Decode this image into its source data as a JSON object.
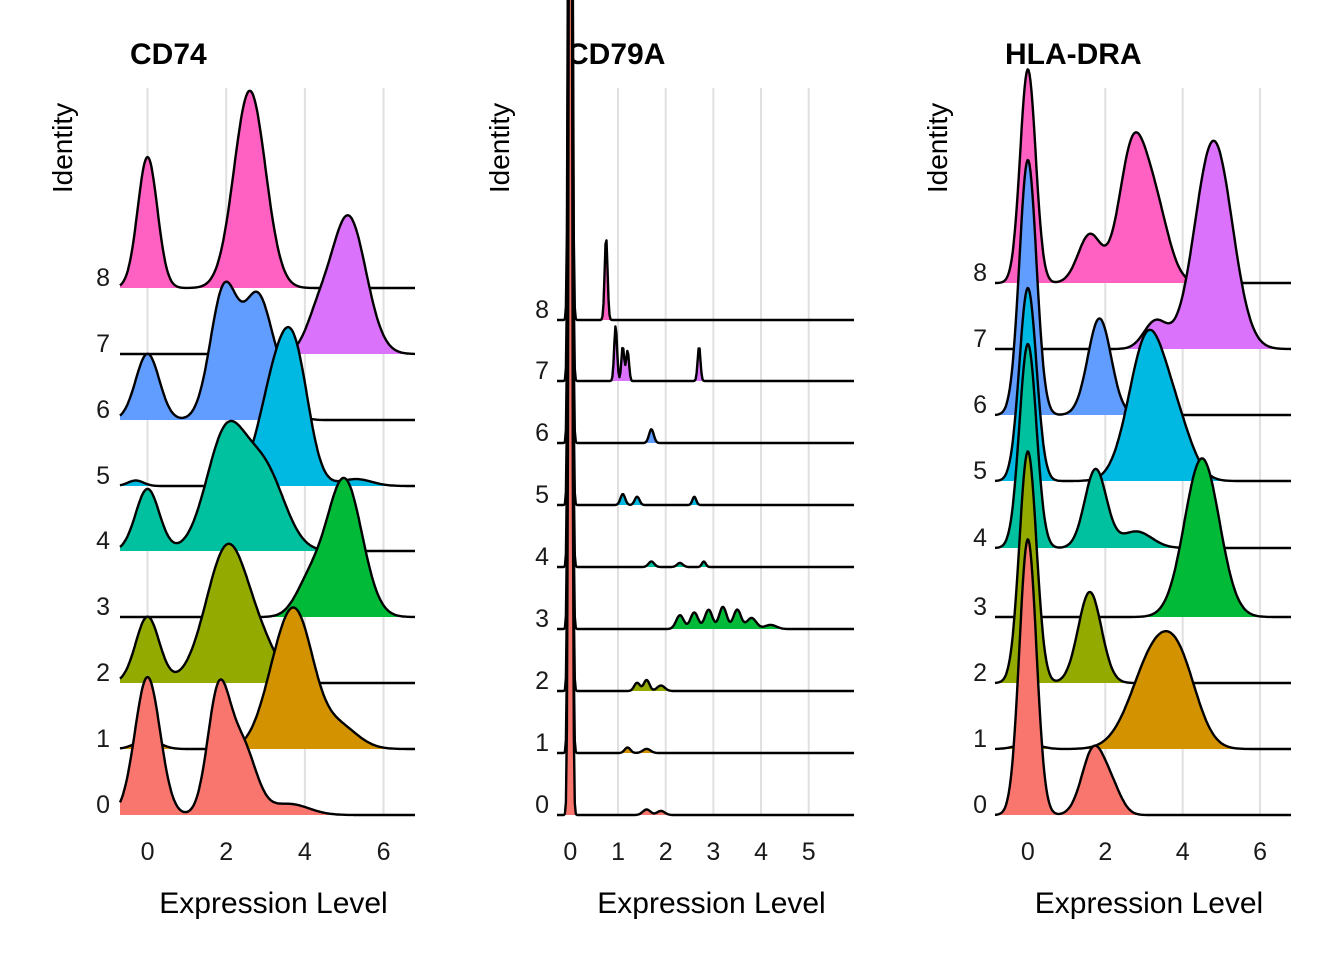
{
  "chart_data": [
    {
      "type": "ridgeline",
      "title": "CD74",
      "xlabel": "Expression Level",
      "ylabel": "Identity",
      "xlim": [
        -0.7,
        6.8
      ],
      "xticks": [
        0,
        2,
        4,
        6
      ],
      "categories": [
        "0",
        "1",
        "2",
        "3",
        "4",
        "5",
        "6",
        "7",
        "8"
      ],
      "colors": [
        "#F8766D",
        "#D39200",
        "#93AA00",
        "#00BA38",
        "#00C19F",
        "#00B9E3",
        "#619CFF",
        "#DB72FB",
        "#FF61C3"
      ],
      "grid": "vertical",
      "series": [
        {
          "name": "0",
          "peaks": [
            [
              0.0,
              0.32,
              1.0
            ],
            [
              1.8,
              0.28,
              0.85
            ],
            [
              2.4,
              0.35,
              0.5
            ],
            [
              3.6,
              0.5,
              0.08
            ]
          ]
        },
        {
          "name": "1",
          "peaks": [
            [
              0.0,
              0.3,
              0.07
            ],
            [
              3.4,
              0.45,
              0.6
            ],
            [
              3.9,
              0.4,
              0.6
            ],
            [
              4.8,
              0.5,
              0.18
            ]
          ]
        },
        {
          "name": "2",
          "peaks": [
            [
              0.0,
              0.3,
              0.48
            ],
            [
              2.05,
              0.55,
              1.0
            ],
            [
              3.0,
              0.4,
              0.15
            ]
          ]
        },
        {
          "name": "3",
          "peaks": [
            [
              4.1,
              0.35,
              0.22
            ],
            [
              5.0,
              0.45,
              1.0
            ]
          ]
        },
        {
          "name": "4",
          "peaks": [
            [
              0.0,
              0.3,
              0.45
            ],
            [
              2.0,
              0.5,
              0.85
            ],
            [
              3.0,
              0.5,
              0.55
            ]
          ]
        },
        {
          "name": "5",
          "peaks": [
            [
              -0.3,
              0.2,
              0.04
            ],
            [
              3.3,
              0.45,
              0.8
            ],
            [
              3.8,
              0.35,
              0.6
            ],
            [
              5.3,
              0.4,
              0.05
            ]
          ]
        },
        {
          "name": "6",
          "peaks": [
            [
              0.0,
              0.3,
              0.48
            ],
            [
              1.95,
              0.35,
              0.95
            ],
            [
              2.8,
              0.35,
              0.85
            ],
            [
              3.4,
              0.3,
              0.2
            ]
          ]
        },
        {
          "name": "7",
          "peaks": [
            [
              4.3,
              0.3,
              0.2
            ],
            [
              5.1,
              0.45,
              1.0
            ]
          ]
        },
        {
          "name": "8",
          "peaks": [
            [
              0.0,
              0.25,
              0.95
            ],
            [
              2.6,
              0.4,
              1.43
            ]
          ]
        }
      ]
    },
    {
      "type": "ridgeline",
      "title": "CD79A",
      "xlabel": "Expression Level",
      "ylabel": "Identity",
      "xlim": [
        -0.28,
        5.95
      ],
      "xticks": [
        0,
        1,
        2,
        3,
        4,
        5
      ],
      "categories": [
        "0",
        "1",
        "2",
        "3",
        "4",
        "5",
        "6",
        "7",
        "8"
      ],
      "colors": [
        "#F8766D",
        "#D39200",
        "#93AA00",
        "#00BA38",
        "#00C19F",
        "#00B9E3",
        "#619CFF",
        "#DB72FB",
        "#FF61C3"
      ],
      "grid": "vertical",
      "series": [
        {
          "name": "0",
          "peaks": [
            [
              0.0,
              0.03,
              11.5
            ],
            [
              1.6,
              0.08,
              0.04
            ],
            [
              1.9,
              0.08,
              0.03
            ]
          ]
        },
        {
          "name": "1",
          "peaks": [
            [
              0.0,
              0.03,
              11.5
            ],
            [
              1.2,
              0.06,
              0.04
            ],
            [
              1.6,
              0.08,
              0.03
            ]
          ]
        },
        {
          "name": "2",
          "peaks": [
            [
              0.0,
              0.03,
              11.5
            ],
            [
              1.4,
              0.06,
              0.06
            ],
            [
              1.6,
              0.06,
              0.08
            ],
            [
              1.9,
              0.08,
              0.04
            ]
          ]
        },
        {
          "name": "3",
          "peaks": [
            [
              0.0,
              0.03,
              11.5
            ],
            [
              2.3,
              0.08,
              0.1
            ],
            [
              2.6,
              0.08,
              0.12
            ],
            [
              2.9,
              0.08,
              0.14
            ],
            [
              3.2,
              0.08,
              0.16
            ],
            [
              3.5,
              0.08,
              0.14
            ],
            [
              3.8,
              0.1,
              0.08
            ],
            [
              4.2,
              0.12,
              0.03
            ]
          ]
        },
        {
          "name": "4",
          "peaks": [
            [
              0.0,
              0.03,
              11.5
            ],
            [
              1.7,
              0.06,
              0.04
            ],
            [
              2.3,
              0.06,
              0.03
            ],
            [
              2.8,
              0.04,
              0.04
            ]
          ]
        },
        {
          "name": "5",
          "peaks": [
            [
              0.0,
              0.03,
              11.5
            ],
            [
              1.1,
              0.05,
              0.08
            ],
            [
              1.4,
              0.05,
              0.06
            ],
            [
              2.6,
              0.04,
              0.06
            ]
          ]
        },
        {
          "name": "6",
          "peaks": [
            [
              0.0,
              0.03,
              11.5
            ],
            [
              1.7,
              0.05,
              0.1
            ]
          ]
        },
        {
          "name": "7",
          "peaks": [
            [
              0.0,
              0.03,
              11.5
            ],
            [
              0.95,
              0.03,
              0.4
            ],
            [
              1.1,
              0.03,
              0.25
            ],
            [
              1.2,
              0.03,
              0.22
            ],
            [
              2.7,
              0.03,
              0.25
            ]
          ]
        },
        {
          "name": "8",
          "peaks": [
            [
              0.0,
              0.03,
              11.5
            ],
            [
              0.75,
              0.03,
              0.6
            ]
          ]
        }
      ]
    },
    {
      "type": "ridgeline",
      "title": "HLA-DRA",
      "xlabel": "Expression Level",
      "ylabel": "Identity",
      "xlim": [
        -0.85,
        6.8
      ],
      "xticks": [
        0,
        2,
        4,
        6
      ],
      "categories": [
        "0",
        "1",
        "2",
        "3",
        "4",
        "5",
        "6",
        "7",
        "8"
      ],
      "colors": [
        "#F8766D",
        "#D39200",
        "#93AA00",
        "#00BA38",
        "#00C19F",
        "#00B9E3",
        "#619CFF",
        "#DB72FB",
        "#FF61C3"
      ],
      "grid": "vertical",
      "series": [
        {
          "name": "0",
          "peaks": [
            [
              0.0,
              0.22,
              2.0
            ],
            [
              1.7,
              0.3,
              0.48
            ],
            [
              2.2,
              0.25,
              0.15
            ]
          ]
        },
        {
          "name": "1",
          "peaks": [
            [
              0.0,
              0.3,
              0.04
            ],
            [
              3.3,
              0.6,
              0.7
            ],
            [
              4.0,
              0.45,
              0.35
            ]
          ]
        },
        {
          "name": "2",
          "peaks": [
            [
              0.0,
              0.22,
              1.68
            ],
            [
              1.6,
              0.3,
              0.66
            ]
          ]
        },
        {
          "name": "3",
          "peaks": [
            [
              4.5,
              0.45,
              1.15
            ]
          ]
        },
        {
          "name": "4",
          "peaks": [
            [
              0.0,
              0.22,
              1.48
            ],
            [
              1.75,
              0.28,
              0.57
            ],
            [
              2.8,
              0.4,
              0.12
            ]
          ]
        },
        {
          "name": "5",
          "peaks": [
            [
              0.0,
              0.22,
              1.4
            ],
            [
              3.1,
              0.48,
              1.05
            ],
            [
              3.9,
              0.4,
              0.3
            ]
          ]
        },
        {
          "name": "6",
          "peaks": [
            [
              0.0,
              0.22,
              1.85
            ],
            [
              1.85,
              0.3,
              0.7
            ]
          ]
        },
        {
          "name": "7",
          "peaks": [
            [
              3.3,
              0.3,
              0.2
            ],
            [
              4.8,
              0.48,
              1.51
            ]
          ]
        },
        {
          "name": "8",
          "peaks": [
            [
              0.0,
              0.2,
              1.55
            ],
            [
              1.6,
              0.3,
              0.35
            ],
            [
              2.7,
              0.35,
              0.95
            ],
            [
              3.3,
              0.35,
              0.5
            ]
          ]
        }
      ]
    }
  ]
}
